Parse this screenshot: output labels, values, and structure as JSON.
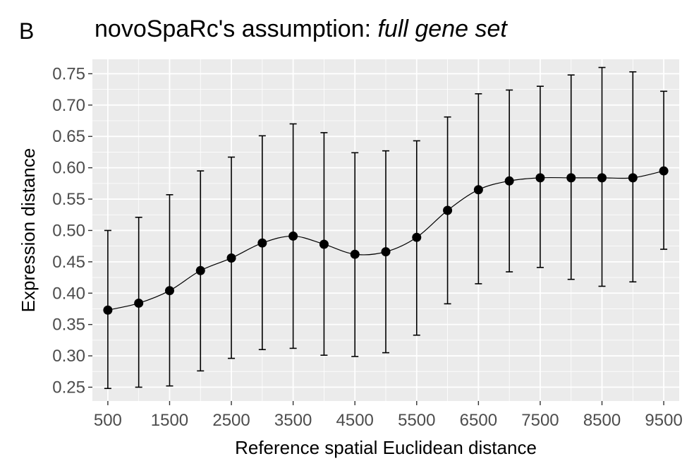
{
  "panel_label": "B",
  "title_prefix": "novoSpaRc's assumption: ",
  "title_emphasis": "full gene set",
  "chart_data": {
    "type": "line",
    "title": "novoSpaRc's assumption: full gene set",
    "xlabel": "Reference spatial Euclidean distance",
    "ylabel": "Expression distance",
    "xlim": [
      250,
      9750
    ],
    "ylim": [
      0.228,
      0.773
    ],
    "x_ticks": [
      500,
      1500,
      2500,
      3500,
      4500,
      5500,
      6500,
      7500,
      8500,
      9500
    ],
    "y_ticks": [
      0.25,
      0.3,
      0.35,
      0.4,
      0.45,
      0.5,
      0.55,
      0.6,
      0.65,
      0.7,
      0.75
    ],
    "y_tick_labels": [
      "0.25",
      "0.30",
      "0.35",
      "0.40",
      "0.45",
      "0.50",
      "0.55",
      "0.60",
      "0.65",
      "0.70",
      "0.75"
    ],
    "grid": true,
    "background": "#ebebeb",
    "point_color": "#000000",
    "x": [
      500,
      1000,
      1500,
      2000,
      2500,
      3000,
      3500,
      4000,
      4500,
      5000,
      5500,
      6000,
      6500,
      7000,
      7500,
      8000,
      8500,
      9000,
      9500
    ],
    "y": [
      0.373,
      0.384,
      0.404,
      0.436,
      0.456,
      0.48,
      0.491,
      0.478,
      0.462,
      0.466,
      0.489,
      0.532,
      0.565,
      0.579,
      0.584,
      0.584,
      0.584,
      0.584,
      0.595
    ],
    "y_lower": [
      0.248,
      0.25,
      0.252,
      0.276,
      0.296,
      0.31,
      0.312,
      0.301,
      0.299,
      0.305,
      0.333,
      0.383,
      0.415,
      0.434,
      0.441,
      0.422,
      0.411,
      0.418,
      0.47
    ],
    "y_upper": [
      0.5,
      0.521,
      0.557,
      0.595,
      0.617,
      0.651,
      0.67,
      0.656,
      0.624,
      0.627,
      0.643,
      0.681,
      0.718,
      0.724,
      0.73,
      0.748,
      0.76,
      0.753,
      0.722
    ]
  }
}
